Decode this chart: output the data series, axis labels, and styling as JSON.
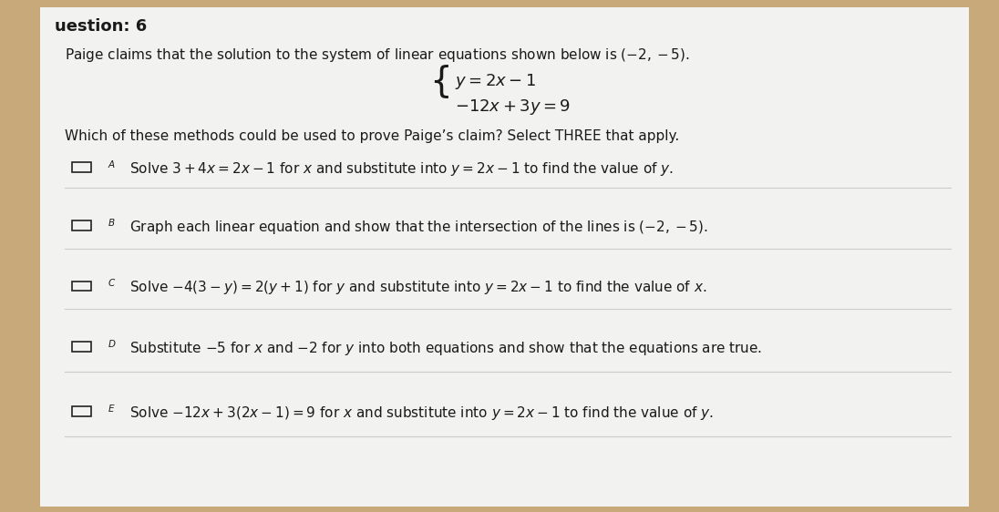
{
  "bg_color": "#c8a97a",
  "paper_color": "#f2f2f0",
  "question_header": "uestion: 6",
  "intro_text": "Paige claims that the solution to the system of linear equations shown below is $(-2,-5)$.",
  "which_text": "Which of these methods could be used to prove Paige’s claim? Select THREE that apply.",
  "option_A_label": "A",
  "option_A_text": "Solve $3 + 4x = 2x - 1$ for $x$ and substitute into $y = 2x - 1$ to find the value of $y$.",
  "option_B_label": "B",
  "option_B_text": "Graph each linear equation and show that the intersection of the lines is $(-2, -5)$.",
  "option_C_label": "C",
  "option_C_text": "Solve $-4(3 - y) = 2(y + 1)$ for $y$ and substitute into $y = 2x - 1$ to find the value of $x$.",
  "option_D_label": "D",
  "option_D_text": "Substitute $-5$ for $x$ and $-2$ for $y$ into both equations and show that the equations are true.",
  "option_E_label": "E",
  "option_E_text": "Solve $-12x + 3(2x - 1) = 9$ for $x$ and substitute into $y = 2x - 1$ to find the value of $y$.",
  "text_color": "#1a1a1a",
  "checkbox_color": "#222222",
  "divider_color": "#cccccc",
  "header_fontsize": 13,
  "body_fontsize": 11,
  "option_fontsize": 11,
  "eq_fontsize": 13,
  "label_fontsize": 7.5
}
